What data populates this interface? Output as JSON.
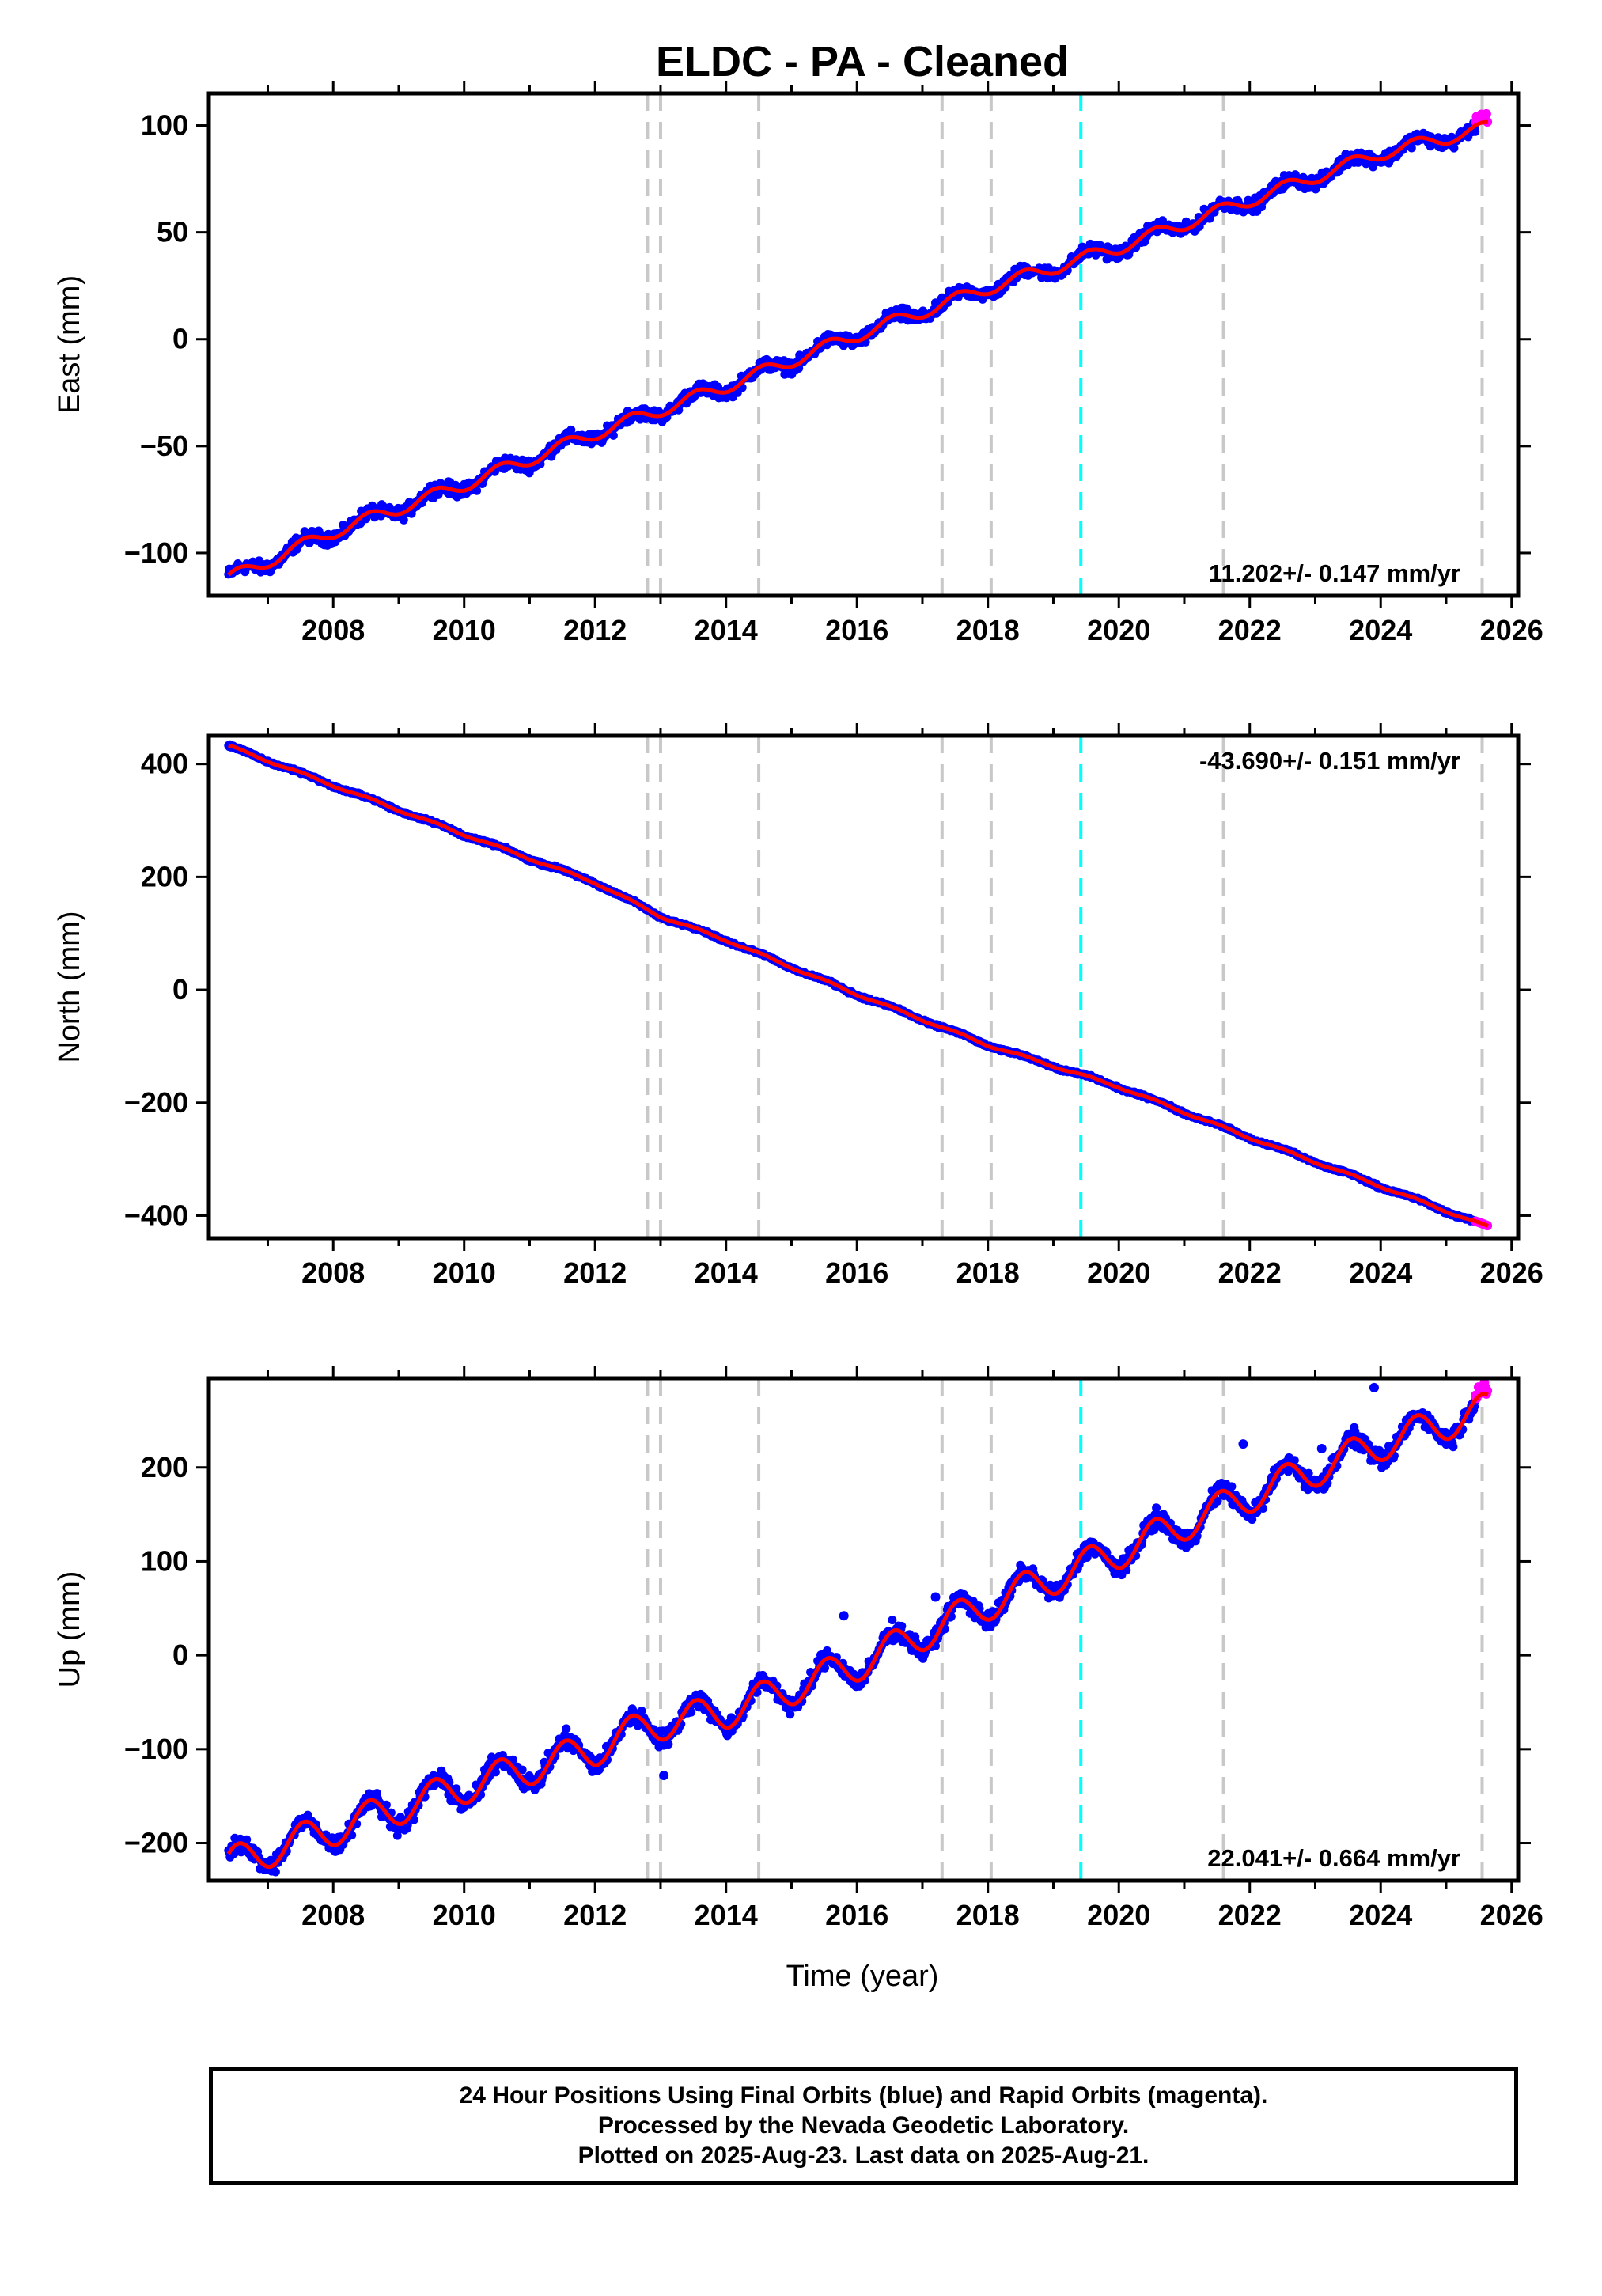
{
  "title": "ELDC  - PA - Cleaned",
  "xlabel": "Time (year)",
  "footer": {
    "line1": "24 Hour Positions Using Final Orbits (blue) and Rapid Orbits (magenta).",
    "line2": "Processed by the Nevada Geodetic Laboratory.",
    "line3": "Plotted on 2025-Aug-23. Last data on 2025-Aug-21."
  },
  "colors": {
    "final_orbits": "#0000ff",
    "rapid_orbits": "#ff00ff",
    "model_fit": "#ff0000",
    "event_line": "#c8c8c8",
    "equipment_change_line": "#00ffff"
  },
  "chart_data": [
    {
      "type": "scatter",
      "component": "east",
      "ylabel": "East (mm)",
      "xlim": [
        2006.1,
        2026.1
      ],
      "ylim": [
        -120,
        115
      ],
      "xticks": [
        "2008",
        "2010",
        "2012",
        "2014",
        "2016",
        "2018",
        "2020",
        "2022",
        "2024",
        "2026"
      ],
      "yticks": [
        "−100",
        "−50",
        "0",
        "50",
        "100"
      ],
      "ytick_values": [
        -100,
        -50,
        0,
        50,
        100
      ],
      "rate": "11.202+/- 0.147 mm/yr",
      "rate_position": "bottom-right",
      "start": [
        2006.4,
        -112
      ],
      "trend": 11.202,
      "seasonal_amplitude": 3,
      "noise": 2.5,
      "last_final": 2025.45,
      "end": [
        2025.64,
        101
      ],
      "rapid_offset": 4,
      "trace": [
        [
          2006.4,
          -112
        ],
        [
          2008,
          -90
        ],
        [
          2010,
          -68
        ],
        [
          2012,
          -44
        ],
        [
          2013,
          -33
        ],
        [
          2014,
          -22
        ],
        [
          2016,
          2
        ],
        [
          2018,
          24
        ],
        [
          2020,
          43
        ],
        [
          2022,
          65
        ],
        [
          2024,
          87
        ],
        [
          2025.64,
          99
        ]
      ]
    },
    {
      "type": "scatter",
      "component": "north",
      "ylabel": "North (mm)",
      "xlim": [
        2006.1,
        2026.1
      ],
      "ylim": [
        -440,
        450
      ],
      "xticks": [
        "2008",
        "2010",
        "2012",
        "2014",
        "2016",
        "2018",
        "2020",
        "2022",
        "2024",
        "2026"
      ],
      "yticks": [
        "−400",
        "−200",
        "0",
        "200",
        "400"
      ],
      "ytick_values": [
        -400,
        -200,
        0,
        200,
        400
      ],
      "rate": "-43.690+/- 0.151 mm/yr",
      "rate_position": "top-right",
      "start": [
        2006.4,
        432
      ],
      "trend": -43.69,
      "seasonal_amplitude": 2,
      "noise": 2,
      "last_final": 2025.45,
      "end": [
        2025.64,
        -420
      ],
      "rapid_offset": 0,
      "trace": [
        [
          2006.4,
          432
        ],
        [
          2008,
          362
        ],
        [
          2010,
          275
        ],
        [
          2012,
          190
        ],
        [
          2013,
          130
        ],
        [
          2014,
          88
        ],
        [
          2016,
          -8
        ],
        [
          2018,
          -98
        ],
        [
          2020,
          -172
        ],
        [
          2022,
          -262
        ],
        [
          2024,
          -348
        ],
        [
          2025.64,
          -420
        ]
      ]
    },
    {
      "type": "scatter",
      "component": "up",
      "ylabel": "Up (mm)",
      "xlim": [
        2006.1,
        2026.1
      ],
      "ylim": [
        -240,
        295
      ],
      "xticks": [
        "2008",
        "2010",
        "2012",
        "2014",
        "2016",
        "2018",
        "2020",
        "2022",
        "2024",
        "2026"
      ],
      "yticks": [
        "−200",
        "−100",
        "0",
        "100",
        "200"
      ],
      "ytick_values": [
        -200,
        -100,
        0,
        100,
        200
      ],
      "rate": "22.041+/- 0.664 mm/yr",
      "rate_position": "bottom-right",
      "start": [
        2006.4,
        -222
      ],
      "trend": 22.041,
      "seasonal_amplitude": 18,
      "noise": 8,
      "last_final": 2025.45,
      "end": [
        2025.64,
        265
      ],
      "rapid_offset": 12,
      "trace": [
        [
          2006.4,
          -222
        ],
        [
          2008,
          -185
        ],
        [
          2010,
          -140
        ],
        [
          2012,
          -100
        ],
        [
          2012.8,
          -75
        ],
        [
          2014,
          -60
        ],
        [
          2016,
          -10
        ],
        [
          2018,
          55
        ],
        [
          2020,
          110
        ],
        [
          2022,
          170
        ],
        [
          2024,
          225
        ],
        [
          2025.64,
          262
        ]
      ]
    }
  ],
  "event_lines": {
    "gray": [
      2012.8,
      2013.0,
      2014.5,
      2017.3,
      2018.05,
      2021.6,
      2025.55
    ],
    "cyan": [
      2019.42
    ]
  }
}
